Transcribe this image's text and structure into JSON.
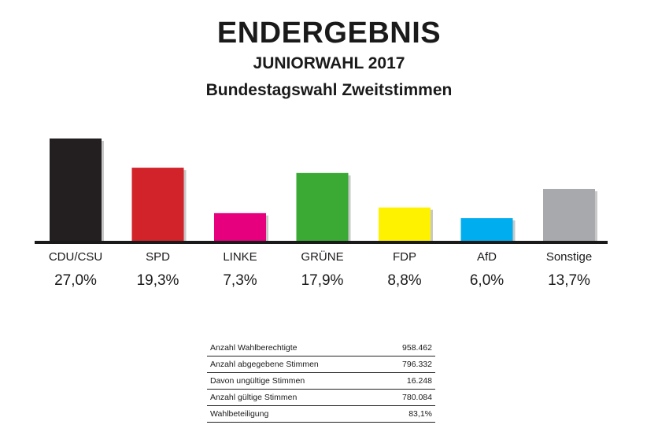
{
  "header": {
    "title": "ENDERGEBNIS",
    "subtitle": "JUNIORWAHL 2017",
    "subtitle2": "Bundestagswahl Zweitstimmen"
  },
  "chart_data": {
    "type": "bar",
    "categories": [
      "CDU/CSU",
      "SPD",
      "LINKE",
      "GRÜNE",
      "FDP",
      "AfD",
      "Sonstige"
    ],
    "values": [
      27.0,
      19.3,
      7.3,
      17.9,
      8.8,
      6.0,
      13.7
    ],
    "value_labels": [
      "27,0%",
      "19,3%",
      "7,3%",
      "17,9%",
      "8,8%",
      "6,0%",
      "13,7%"
    ],
    "colors": [
      "#231f20",
      "#d2232a",
      "#e6007e",
      "#3aaa35",
      "#fff200",
      "#00aeef",
      "#a7a9ac"
    ],
    "ylim": [
      0,
      27.0
    ],
    "grid": false,
    "legend": "none"
  },
  "stats": {
    "rows": [
      {
        "label": "Anzahl Wahlberechtigte",
        "value": "958.462"
      },
      {
        "label": "Anzahl abgegebene Stimmen",
        "value": "796.332"
      },
      {
        "label": "Davon ungültige Stimmen",
        "value": "16.248"
      },
      {
        "label": "Anzahl gültige Stimmen",
        "value": "780.084"
      },
      {
        "label": "Wahlbeteiligung",
        "value": "83,1%"
      }
    ]
  }
}
